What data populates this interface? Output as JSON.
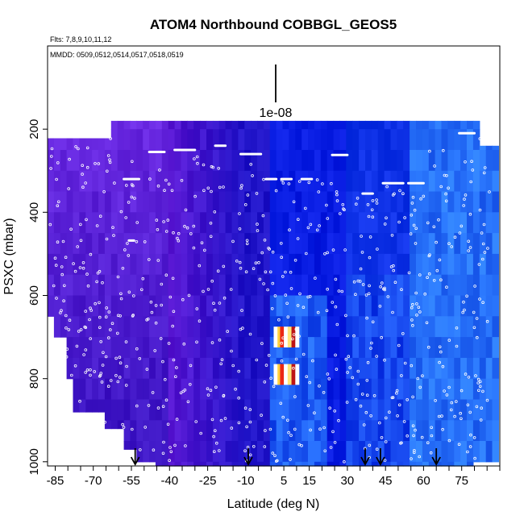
{
  "chart_data": {
    "type": "heatmap",
    "title": "ATOM4 Northbound COBBGL_GEOS5",
    "subtitle_flights": "Flts: 7,8,9,10,11,12",
    "subtitle_dates": "MMDD: 0509,0512,0514,0517,0518,0519",
    "xlabel": "Latitude (deg N)",
    "ylabel": "PSXC (mbar)",
    "xlim": [
      -88,
      90
    ],
    "ylim": [
      1010,
      0
    ],
    "x_ticks": [
      -85,
      -70,
      -55,
      -40,
      -25,
      -10,
      5,
      15,
      30,
      45,
      60,
      75
    ],
    "x_ticks_labeled": [
      "-85",
      "-70",
      "-55",
      "-40",
      "-25",
      "-10",
      "5",
      "15",
      "30",
      "45",
      "60",
      "75"
    ],
    "y_ticks": [
      200,
      400,
      600,
      800,
      1000
    ],
    "y_tick_labels": [
      "200",
      "400",
      "600",
      "800",
      "1000"
    ],
    "scale_bar_label": "1e-08",
    "arrow_latitudes": [
      -53.5,
      -9,
      37,
      43,
      65
    ],
    "colors": {
      "low": "#5a10d8",
      "mid": "#0a1ce0",
      "high": "#2a8cff",
      "peak": "#d01010"
    },
    "hot_spots": [
      {
        "lat": 4,
        "p": 700,
        "value": "very high"
      },
      {
        "lat": 4,
        "p": 790,
        "value": "very high"
      }
    ]
  }
}
